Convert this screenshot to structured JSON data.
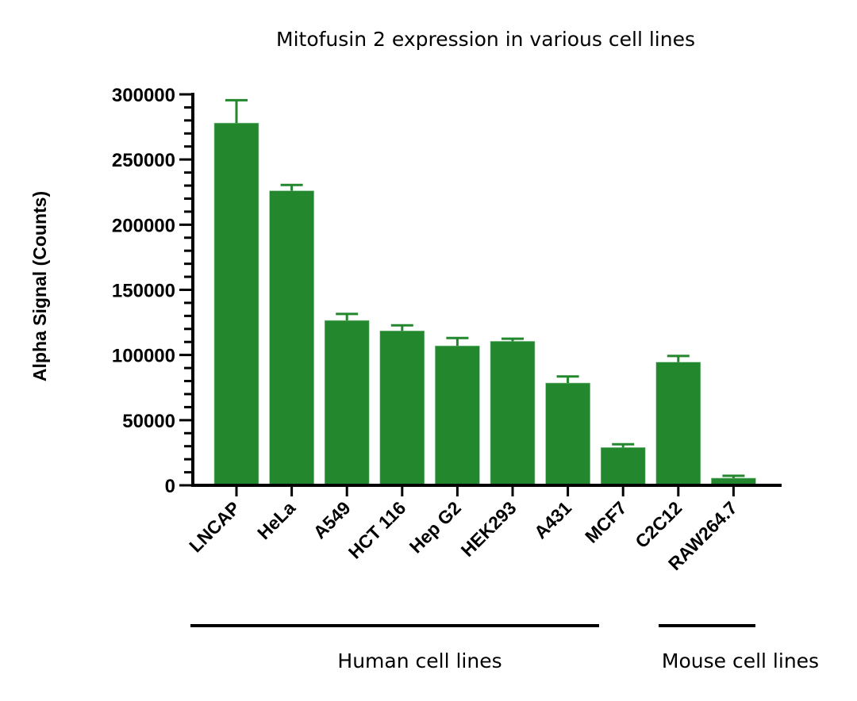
{
  "chart_data": {
    "type": "bar",
    "title": "Mitofusin 2 expression in various cell lines",
    "xlabel": "",
    "ylabel": "Alpha Signal (Counts)",
    "ylim": [
      0,
      300000
    ],
    "yticks": [
      0,
      50000,
      100000,
      150000,
      200000,
      250000,
      300000
    ],
    "ytick_labels": [
      "0",
      "50000",
      "100000",
      "150000",
      "200000",
      "250000",
      "300000"
    ],
    "minor_tick_step": 10000,
    "grid": false,
    "categories": [
      "LNCAP",
      "HeLa",
      "A549",
      "HCT 116",
      "Hep G2",
      "HEK293",
      "A431",
      "MCF7",
      "C2C12",
      "RAW264.7"
    ],
    "values": [
      278000,
      226000,
      126500,
      118500,
      107000,
      110500,
      78500,
      29000,
      94500,
      5500
    ],
    "error_upper": [
      17500,
      4500,
      5000,
      4300,
      6000,
      2000,
      5000,
      2500,
      4800,
      1800
    ],
    "bar_color": "#23872D",
    "groups": [
      {
        "label": "Human cell lines",
        "categories": [
          "LNCAP",
          "HeLa",
          "A549",
          "HCT 116",
          "Hep G2",
          "HEK293",
          "A431",
          "MCF7"
        ]
      },
      {
        "label": "Mouse cell lines",
        "categories": [
          "C2C12",
          "RAW264.7"
        ]
      }
    ]
  }
}
